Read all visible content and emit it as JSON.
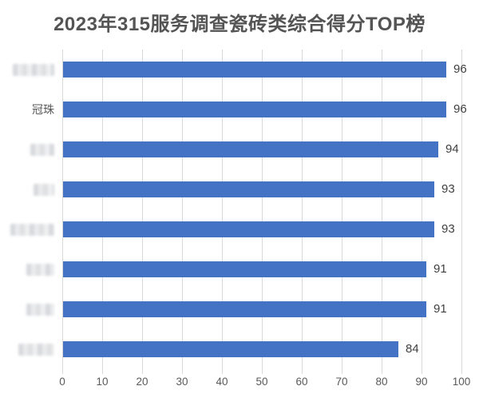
{
  "chart_data": {
    "type": "bar",
    "orientation": "horizontal",
    "title": "2023年315服务调查瓷砖类综合得分TOP榜",
    "categories": [
      "",
      "冠珠",
      "",
      "",
      "",
      "",
      "",
      ""
    ],
    "categories_censored": [
      true,
      false,
      true,
      true,
      true,
      true,
      true,
      true
    ],
    "censor_widths": [
      52,
      0,
      30,
      26,
      55,
      35,
      35,
      45
    ],
    "values": [
      96,
      96,
      94,
      93,
      93,
      91,
      91,
      84
    ],
    "xlabel": "",
    "ylabel": "",
    "xlim": [
      0,
      100
    ],
    "x_ticks": [
      0,
      10,
      20,
      30,
      40,
      50,
      60,
      70,
      80,
      90,
      100
    ],
    "grid": true,
    "legend": false,
    "colors": {
      "bar": "#4472C4",
      "gridline": "#d9d9d9",
      "title": "#545454",
      "value_label": "#3f3f3f",
      "axis_label": "#595959",
      "category_label": "#595959"
    }
  }
}
